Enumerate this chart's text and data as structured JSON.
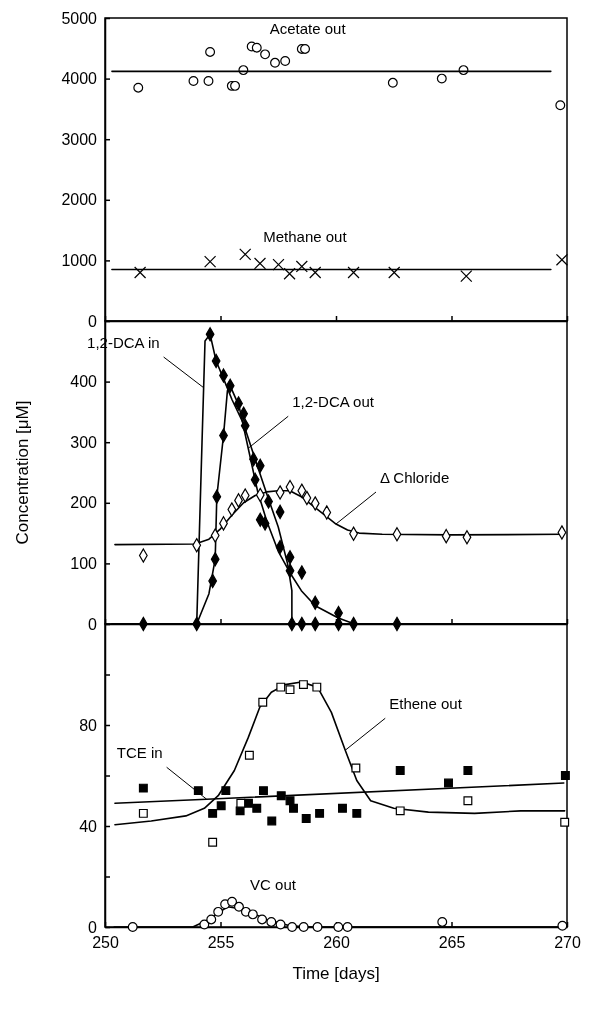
{
  "chart_data": [
    {
      "type": "line",
      "tick_labels": "y",
      "xlim": [
        250,
        270
      ],
      "xticks": [
        {
          "value": 250,
          "label": null
        },
        {
          "value": 255,
          "label": null
        },
        {
          "value": 260,
          "label": null
        },
        {
          "value": 265,
          "label": null
        },
        {
          "value": 270,
          "label": null
        }
      ],
      "ylim": [
        0,
        5000
      ],
      "yticks": [
        0,
        1000,
        2000,
        3000,
        4000,
        5000
      ],
      "series": [
        {
          "name": "Acetate out",
          "type": "scatter",
          "marker": "circle",
          "color": "#ffffff",
          "x": [
            251.44,
            253.83,
            254.48,
            254.55,
            255.49,
            255.63,
            255.99,
            256.35,
            256.57,
            256.93,
            257.36,
            257.8,
            258.52,
            258.66,
            262.46,
            264.58,
            265.52,
            269.71
          ],
          "values": [
            3850,
            3960,
            3960,
            4440,
            3880,
            3880,
            4140,
            4530,
            4510,
            4400,
            4260,
            4290,
            4490,
            4490,
            3930,
            4000,
            4140,
            3560
          ]
        },
        {
          "name": "Methane out",
          "type": "scatter",
          "marker": "cross",
          "color": "#000000",
          "x": [
            251.52,
            254.55,
            256.07,
            256.71,
            257.51,
            257.99,
            258.52,
            259.1,
            260.76,
            262.52,
            265.64,
            269.78
          ],
          "values": [
            800,
            980,
            1100,
            950,
            930,
            780,
            900,
            800,
            800,
            800,
            740,
            1010
          ]
        },
        {
          "type": "line",
          "color": "#000000",
          "x": [
            250.3,
            269.3
          ],
          "values": [
            4120,
            4120
          ]
        },
        {
          "type": "line",
          "color": "#000000",
          "x": [
            250.3,
            269.3
          ],
          "values": [
            850,
            850
          ]
        }
      ]
    },
    {
      "type": "line",
      "tick_labels": "y",
      "xlim": [
        250,
        270
      ],
      "xticks": [
        {
          "value": 250,
          "label": null
        },
        {
          "value": 255,
          "label": null
        },
        {
          "value": 260,
          "label": null
        },
        {
          "value": 265,
          "label": null
        },
        {
          "value": 270,
          "label": null
        }
      ],
      "ylim": [
        0,
        500
      ],
      "yticks": [
        0,
        100,
        200,
        300,
        400
      ],
      "ylabel": "Concentration [μM]",
      "series": [
        {
          "type": "line",
          "color": "#000000",
          "x": [
            250.3,
            253.97,
            254.2,
            254.27,
            254.33,
            254.55,
            254.81,
            255.13,
            255.5,
            256.0,
            256.5,
            257.0,
            257.5,
            257.9,
            258.09,
            258.09,
            269.9
          ],
          "values": [
            0,
            0,
            300,
            390,
            467,
            478,
            434,
            405,
            370,
            330,
            272,
            215,
            160,
            100,
            55,
            0,
            0
          ]
        },
        {
          "type": "line",
          "color": "#000000",
          "x": [
            250.3,
            253.97,
            254.5,
            254.77,
            254.84,
            255.13,
            255.3,
            255.42,
            255.8,
            256.2,
            256.6,
            257.0,
            257.5,
            258.0,
            258.5,
            259.1,
            260.1,
            260.8,
            269.9
          ],
          "values": [
            0,
            0,
            50,
            107,
            210,
            311,
            385,
            393,
            360,
            290,
            220,
            170,
            120,
            85,
            55,
            30,
            10,
            0,
            0
          ]
        },
        {
          "type": "line",
          "color": "#000000",
          "x": [
            250.43,
            253.9,
            254.5,
            255.0,
            255.5,
            256.0,
            256.5,
            257.0,
            257.5,
            258.0,
            258.5,
            259.0,
            259.5,
            260.0,
            260.5,
            261.0,
            262,
            265,
            269.8
          ],
          "values": [
            131,
            132,
            140,
            157,
            180,
            200,
            212,
            218,
            220,
            220,
            210,
            195,
            180,
            165,
            155,
            150,
            148,
            147,
            148
          ]
        },
        {
          "type": "scatter",
          "marker": "diamond",
          "color": "#000000",
          "x": [
            254.55,
            254.81,
            255.13,
            255.42,
            255.78,
            256.0,
            256.07,
            256.43,
            256.72,
            256.5,
            257.08,
            257.58,
            256.72,
            256.93,
            257.58,
            258.01,
            258.01,
            258.52,
            259.1,
            260.11,
            255.13,
            254.84,
            254.77,
            254.66,
            251.66,
            253.97,
            258.09,
            258.52,
            259.1,
            260.11,
            260.76,
            262.64
          ],
          "values": [
            478,
            434,
            410,
            393,
            364,
            347,
            327,
            272,
            261,
            238,
            202,
            185,
            172,
            166,
            127,
            110,
            88,
            85,
            35,
            18,
            311,
            210,
            107,
            71,
            0,
            0,
            0,
            0,
            0,
            0,
            0,
            0
          ]
        },
        {
          "type": "scatter",
          "marker": "diamond",
          "color": "#ffffff",
          "x": [
            251.66,
            253.97,
            254.77,
            255.13,
            255.49,
            255.78,
            256.07,
            256.72,
            257.58,
            258.01,
            258.52,
            258.74,
            259.1,
            259.6,
            260.76,
            262.64,
            264.77,
            265.67,
            269.78
          ],
          "values": [
            113,
            130,
            146,
            166,
            189,
            204,
            212,
            213,
            217,
            226,
            220,
            208,
            199,
            184,
            149,
            148,
            145,
            143,
            151
          ]
        }
      ],
      "annotations": [
        {
          "text": "1,2-DCA in",
          "x": 254.27,
          "y": 390
        },
        {
          "text": "1,2-DCA out",
          "x": 256.2,
          "y": 290
        },
        {
          "text": "Δ Chloride",
          "x": 260.0,
          "y": 165
        }
      ]
    },
    {
      "type": "line",
      "xlim": [
        250,
        270
      ],
      "xticks": [
        250,
        255,
        260,
        265,
        270
      ],
      "ylim": [
        0,
        120
      ],
      "yticks": [
        0,
        {
          "value": 20,
          "label": null
        },
        40,
        {
          "value": 60,
          "label": null
        },
        80,
        {
          "value": 100,
          "label": null
        }
      ],
      "xlabel": "Time [days]",
      "series": [
        {
          "type": "line",
          "color": "#000000",
          "x": [
            250.43,
            254.4,
            269.86
          ],
          "values": [
            49,
            50.6,
            57
          ]
        },
        {
          "type": "line",
          "color": "#000000",
          "x": [
            250.43,
            252,
            253.5,
            254.3,
            254.9,
            255.6,
            256.2,
            256.7,
            257.2,
            257.8,
            258.5,
            259.2,
            259.8,
            260.4,
            260.9,
            261.5,
            262.5,
            264,
            266,
            268,
            269.9
          ],
          "values": [
            40.5,
            42,
            44,
            47,
            52,
            62,
            75,
            87,
            93,
            96,
            97,
            95,
            85,
            70,
            58,
            50,
            47,
            45.5,
            45,
            46,
            46
          ]
        },
        {
          "type": "line",
          "color": "#000000",
          "x": [
            250.4,
            253.8,
            254.5,
            255.3,
            256.0,
            257.0,
            258.0,
            259,
            269.9
          ],
          "values": [
            0,
            0,
            3,
            8,
            7,
            3,
            0.5,
            0,
            0
          ]
        },
        {
          "type": "scatter",
          "marker": "square",
          "color": "#000000",
          "x": [
            251.66,
            254.04,
            255.23,
            254.66,
            255.03,
            255.85,
            256.21,
            256.57,
            256.86,
            257.22,
            257.63,
            258.01,
            258.16,
            258.71,
            259.29,
            260.28,
            260.9,
            262.78,
            264.87,
            265.71,
            269.93
          ],
          "values": [
            55,
            54,
            54,
            45,
            48,
            46,
            49,
            47,
            54,
            42,
            52,
            50,
            47,
            43,
            45,
            47,
            45,
            62,
            57,
            62,
            60
          ]
        },
        {
          "type": "scatter",
          "marker": "square",
          "color": "#ffffff",
          "x": [
            251.66,
            254.66,
            255.88,
            256.25,
            256.83,
            257.61,
            258.01,
            258.59,
            259.17,
            260.86,
            262.78,
            265.71,
            269.9
          ],
          "values": [
            45,
            33.6,
            49,
            68,
            89,
            95,
            94,
            96,
            95,
            63,
            46,
            50,
            41.5
          ]
        },
        {
          "name": "VC out",
          "type": "scatter",
          "marker": "circle",
          "color": "#ffffff",
          "x": [
            251.2,
            254.3,
            254.6,
            254.9,
            255.2,
            255.5,
            255.8,
            256.1,
            256.4,
            256.8,
            257.2,
            257.6,
            258.1,
            258.6,
            259.2,
            260.1,
            260.5,
            264.6,
            269.8
          ],
          "values": [
            0,
            1,
            3,
            6,
            9,
            10,
            8,
            6,
            5,
            3,
            2,
            1,
            0,
            0,
            0,
            0,
            0,
            2,
            0.5
          ]
        }
      ],
      "annotations": [
        {
          "text": "TCE in",
          "x": 254.4,
          "y": 50.6
        },
        {
          "text": "Ethene out",
          "x": 260.4,
          "y": 70
        }
      ]
    }
  ]
}
